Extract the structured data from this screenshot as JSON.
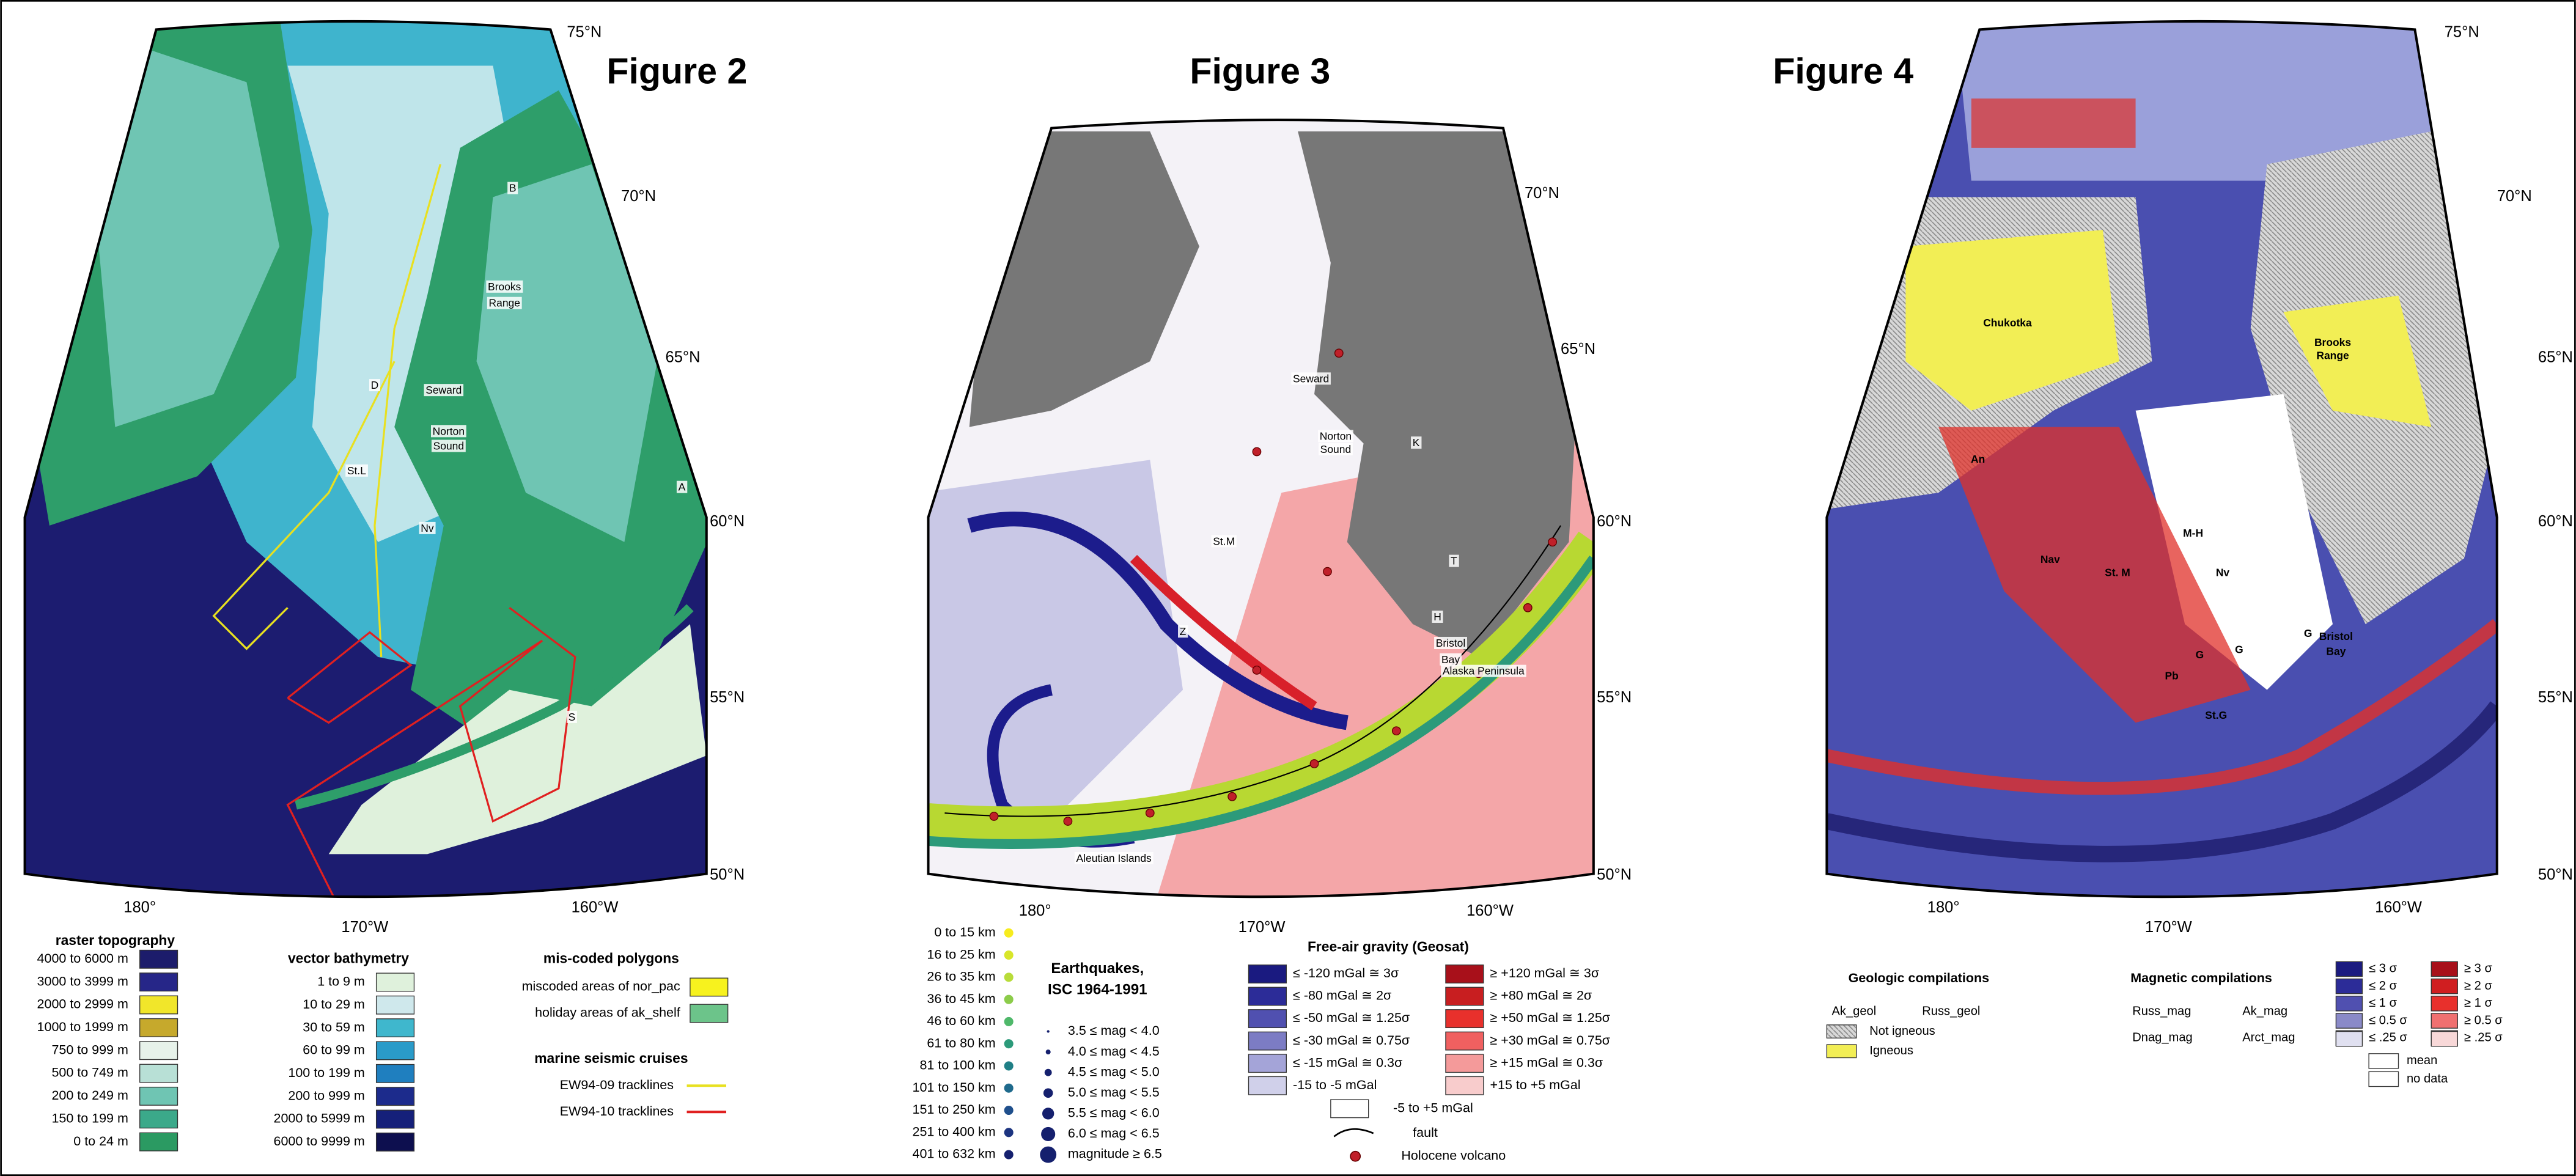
{
  "figures": [
    {
      "title": "Figure 2",
      "lat_labels": [
        "75°N",
        "70°N",
        "65°N",
        "60°N",
        "55°N",
        "50°N"
      ],
      "lon_labels": [
        "180°",
        "170°W",
        "160°W"
      ],
      "place_labels": [
        "B",
        "Brooks",
        "Range",
        "D",
        "Seward",
        "Norton",
        "Sound",
        "St.L",
        "A",
        "Nv",
        "S"
      ]
    },
    {
      "title": "Figure 3",
      "lat_labels": [
        "70°N",
        "65°N",
        "60°N",
        "55°N",
        "50°N"
      ],
      "lon_labels": [
        "180°",
        "170°W",
        "160°W"
      ],
      "place_labels": [
        "Seward",
        "Norton",
        "Sound",
        "K",
        "St.M",
        "T",
        "H",
        "Bristol",
        "Bay",
        "Alaska Peninsula",
        "Z",
        "Aleutian Islands"
      ]
    },
    {
      "title": "Figure 4",
      "lat_labels": [
        "75°N",
        "70°N",
        "65°N",
        "60°N",
        "55°N",
        "50°N"
      ],
      "lon_labels": [
        "180°",
        "170°W",
        "160°W"
      ],
      "place_labels": [
        "Chukotka",
        "Brooks",
        "Range",
        "An",
        "M-H",
        "Nav",
        "St. M",
        "Nv",
        "G",
        "G",
        "G",
        "Bristol",
        "Bay",
        "Pb",
        "St.G"
      ]
    }
  ],
  "legend2": {
    "raster_topography": {
      "title": "raster topography",
      "items": [
        "4000 to 6000 m",
        "3000 to 3999 m",
        "2000 to 2999 m",
        "1000 to 1999 m",
        "750 to 999 m",
        "500 to 749 m",
        "200 to 249 m",
        "150 to 199 m",
        "0 to 24 m"
      ]
    },
    "vector_bathymetry": {
      "title": "vector bathymetry",
      "items": [
        "1 to 9 m",
        "10 to 29 m",
        "30 to 59 m",
        "60 to 99 m",
        "100 to 199 m",
        "200 to 999 m",
        "2000 to 5999 m",
        "6000 to 9999 m"
      ]
    },
    "miscoded_polygons": {
      "title": "mis-coded polygons",
      "items": [
        "miscoded areas of nor_pac",
        "holiday areas of ak_shelf"
      ]
    },
    "marine_seismic_cruises": {
      "title": "marine seismic cruises",
      "items": [
        "EW94-09 tracklines",
        "EW94-10 tracklines"
      ]
    }
  },
  "legend3": {
    "depth": [
      "0 to 15 km",
      "16 to 25 km",
      "26 to 35 km",
      "36 to 45 km",
      "46 to 60 km",
      "61 to 80 km",
      "81 to 100 km",
      "101 to 150 km",
      "151 to 250 km",
      "251 to 400 km",
      "401 to 632 km"
    ],
    "earthquakes_title": [
      "Earthquakes,",
      "ISC 1964-1991"
    ],
    "magnitude": [
      "3.5 ≤ mag < 4.0",
      "4.0 ≤ mag < 4.5",
      "4.5 ≤ mag < 5.0",
      "5.0 ≤ mag < 5.5",
      "5.5 ≤ mag < 6.0",
      "6.0 ≤ mag < 6.5",
      "magnitude ≥ 6.5"
    ],
    "gravity": {
      "title": "Free-air gravity (Geosat)",
      "negative": [
        "≤ -120 mGal ≅ 3σ",
        "≤ -80 mGal ≅ 2σ",
        "≤ -50 mGal ≅ 1.25σ",
        "≤ -30 mGal ≅ 0.75σ",
        "≤ -15 mGal ≅ 0.3σ",
        "-15 to -5 mGal"
      ],
      "positive": [
        "≥ +120 mGal ≅ 3σ",
        "≥ +80 mGal ≅ 2σ",
        "≥ +50 mGal ≅ 1.25σ",
        "≥ +30 mGal ≅ 0.75σ",
        "≥ +15 mGal ≅ 0.3σ",
        "+15 to +5 mGal"
      ],
      "neutral": "-5 to +5 mGal"
    },
    "fault": "fault",
    "volcano": "Holocene volcano"
  },
  "legend4": {
    "geologic": {
      "title": "Geologic compilations",
      "columns": [
        "Ak_geol",
        "Russ_geol"
      ],
      "items": [
        "Not igneous",
        "Igneous"
      ]
    },
    "magnetic": {
      "title": "Magnetic compilations",
      "rows": [
        [
          "Russ_mag",
          "Ak_mag"
        ],
        [
          "Dnag_mag",
          "Arct_mag"
        ]
      ]
    },
    "negative": [
      "≤ 3 σ",
      "≤ 2 σ",
      "≤ 1 σ",
      "≤ 0.5 σ",
      "≤ .25 σ"
    ],
    "positive": [
      "≥ 3 σ",
      "≥ 2 σ",
      "≥ 1 σ",
      "≥ 0.5 σ",
      "≥ .25 σ"
    ],
    "extra": [
      "mean",
      "no data"
    ]
  }
}
